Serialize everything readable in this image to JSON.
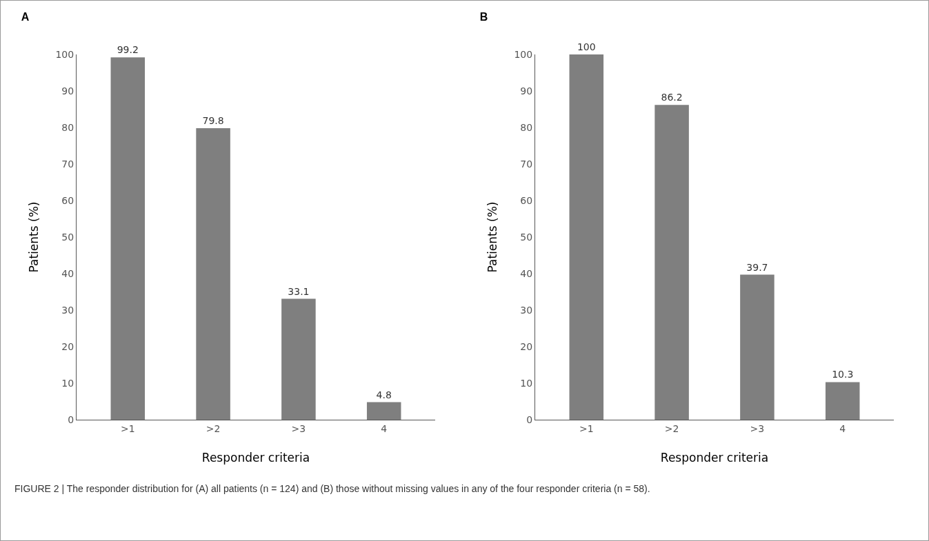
{
  "chart_data": [
    {
      "type": "bar",
      "title": "A",
      "categories": [
        ">1",
        ">2",
        ">3",
        "4"
      ],
      "values": [
        99.2,
        79.8,
        33.1,
        4.8
      ],
      "color": "#7f7f7f",
      "ylim": [
        0,
        100
      ],
      "yticks": [
        0,
        10,
        20,
        30,
        40,
        50,
        60,
        70,
        80,
        90,
        100
      ],
      "ylabel": "Patients (%)",
      "xlabel": "Responder criteria",
      "data_labels": true,
      "grid": false,
      "annotations": [
        "FIGURE 2 | The responder distribution for (A) all patients (n = 124) and (B) those without missing values in any of the four responder criteria (n = 58)."
      ]
    },
    {
      "type": "bar",
      "title": "B",
      "categories": [
        ">1",
        ">2",
        ">3",
        "4"
      ],
      "values": [
        100,
        86.2,
        39.7,
        10.3
      ],
      "color": "#7f7f7f",
      "ylim": [
        0,
        100
      ],
      "yticks": [
        0,
        10,
        20,
        30,
        40,
        50,
        60,
        70,
        80,
        90,
        100
      ],
      "ylabel": "Patients (%)",
      "xlabel": "Responder criteria",
      "data_labels": true,
      "grid": false
    }
  ]
}
